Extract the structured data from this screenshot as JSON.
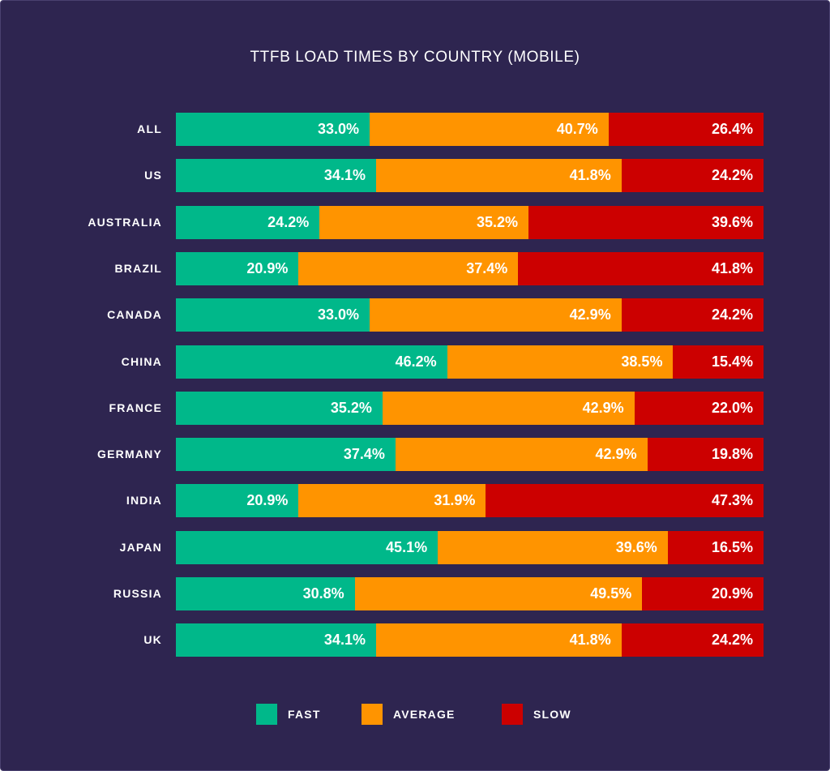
{
  "colors": {
    "fast": "#00b88a",
    "average": "#ff9400",
    "slow": "#cc0000",
    "background": "#2e2550"
  },
  "chart_data": {
    "type": "bar",
    "orientation": "horizontal",
    "stacked": true,
    "percent_stacked": true,
    "title": "TTFB LOAD TIMES BY COUNTRY (MOBILE)",
    "xlabel": "",
    "ylabel": "",
    "xlim": [
      0,
      100
    ],
    "categories": [
      "ALL",
      "US",
      "AUSTRALIA",
      "BRAZIL",
      "CANADA",
      "CHINA",
      "FRANCE",
      "GERMANY",
      "INDIA",
      "JAPAN",
      "RUSSIA",
      "UK"
    ],
    "series": [
      {
        "name": "FAST",
        "key": "fast",
        "values": [
          33.0,
          34.1,
          24.2,
          20.9,
          33.0,
          46.2,
          35.2,
          37.4,
          20.9,
          45.1,
          30.8,
          34.1
        ],
        "labels": [
          "33.0%",
          "34.1%",
          "24.2%",
          "20.9%",
          "33.0%",
          "46.2%",
          "35.2%",
          "37.4%",
          "20.9%",
          "45.1%",
          "30.8%",
          "34.1%"
        ]
      },
      {
        "name": "AVERAGE",
        "key": "average",
        "values": [
          40.7,
          41.8,
          35.2,
          37.4,
          42.9,
          38.5,
          42.9,
          42.9,
          31.9,
          39.6,
          49.5,
          41.8
        ],
        "labels": [
          "40.7%",
          "41.8%",
          "35.2%",
          "37.4%",
          "42.9%",
          "38.5%",
          "42.9%",
          "42.9%",
          "31.9%",
          "39.6%",
          "49.5%",
          "41.8%"
        ]
      },
      {
        "name": "SLOW",
        "key": "slow",
        "values": [
          26.4,
          24.2,
          39.6,
          41.8,
          24.2,
          15.4,
          22.0,
          19.8,
          47.3,
          16.5,
          20.9,
          24.2
        ],
        "labels": [
          "26.4%",
          "24.2%",
          "39.6%",
          "41.8%",
          "24.2%",
          "15.4%",
          "22.0%",
          "19.8%",
          "47.3%",
          "16.5%",
          "20.9%",
          "24.2%"
        ]
      }
    ],
    "legend": {
      "placement": "bottom",
      "entries": [
        "FAST",
        "AVERAGE",
        "SLOW"
      ]
    },
    "grid": false
  }
}
